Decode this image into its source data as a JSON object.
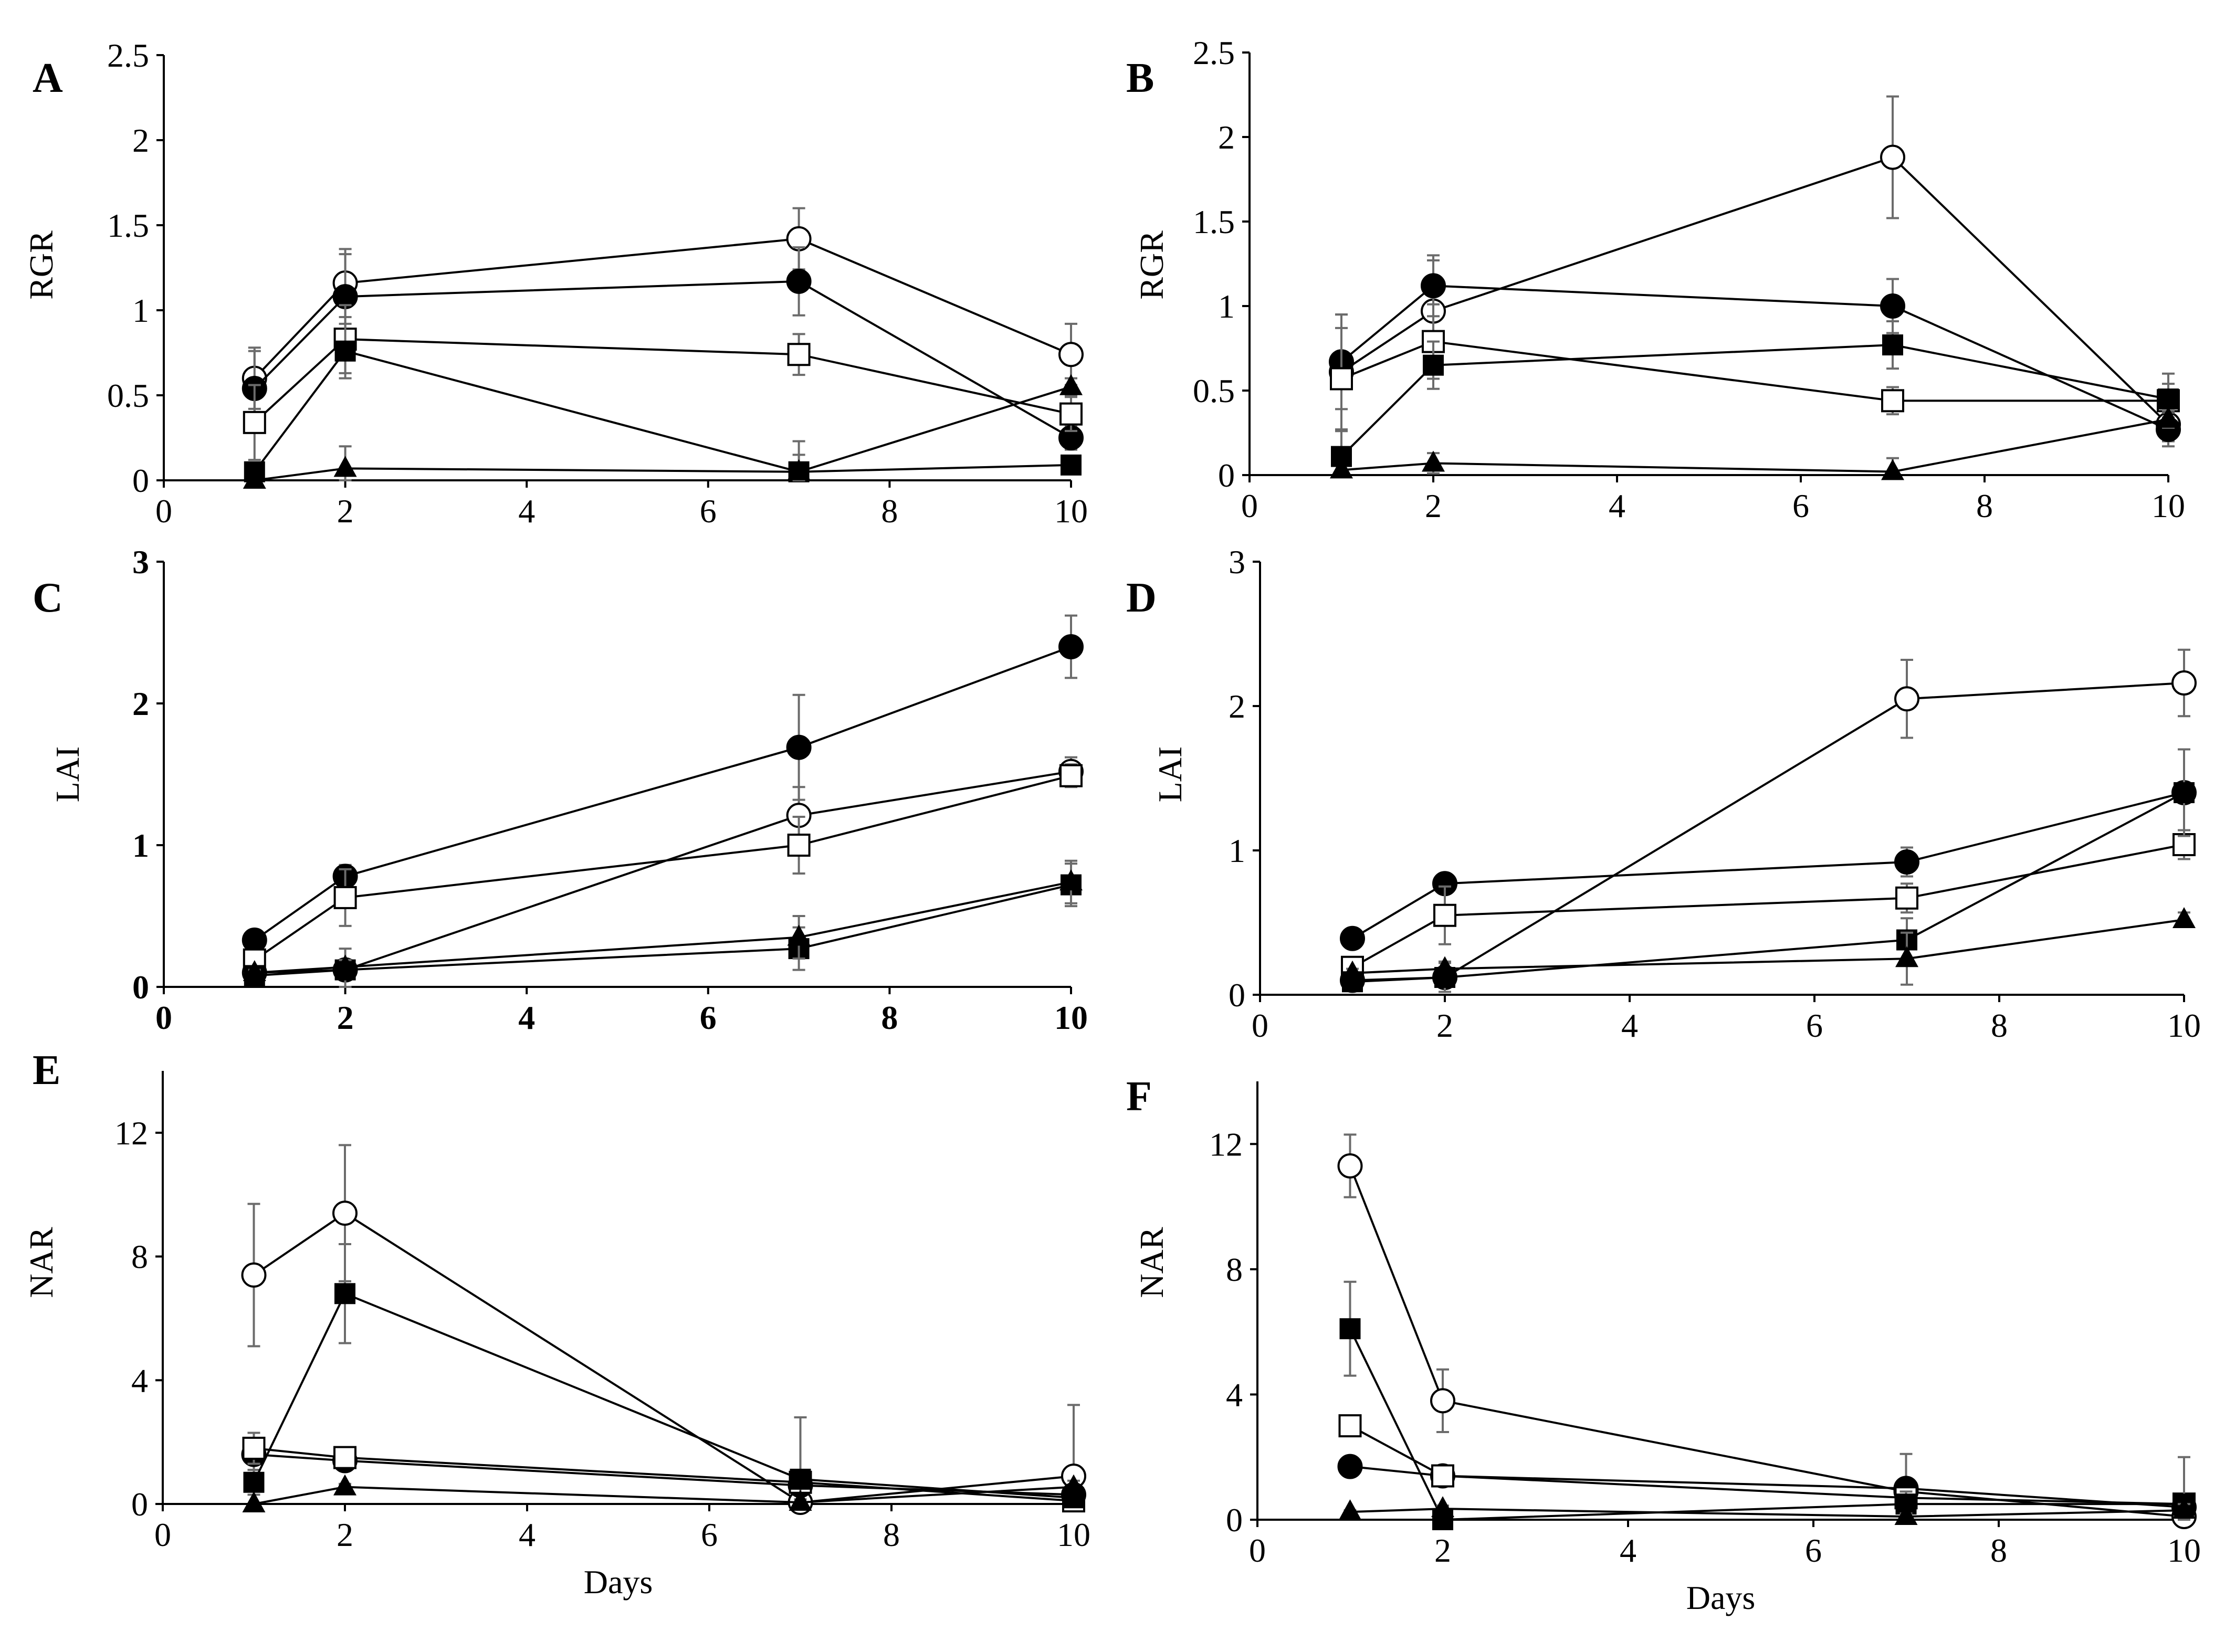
{
  "figure": {
    "xlabel_common": "Days"
  },
  "chart_data": [
    {
      "panel": "A",
      "type": "line",
      "ylabel": "RGR",
      "xlabel": "",
      "xlim": [
        0,
        10
      ],
      "ylim": [
        0,
        2.5
      ],
      "xticks": [
        0,
        2,
        4,
        6,
        8,
        10
      ],
      "yticks": [
        0,
        0.5,
        1,
        1.5,
        2,
        2.5
      ],
      "bold_ticks": false,
      "x": [
        1,
        2,
        7,
        10
      ],
      "series": [
        {
          "marker": "open-circle",
          "values": [
            0.6,
            1.16,
            1.42,
            0.74
          ],
          "errors": [
            0.18,
            0.2,
            0.18,
            0.18
          ]
        },
        {
          "marker": "filled-circle",
          "values": [
            0.54,
            1.08,
            1.17,
            0.25
          ],
          "errors": [
            0.22,
            0.25,
            0.2,
            0.07
          ]
        },
        {
          "marker": "open-square",
          "values": [
            0.34,
            0.83,
            0.74,
            0.39
          ],
          "errors": [
            0.22,
            0.2,
            0.12,
            0.1
          ]
        },
        {
          "marker": "filled-square",
          "values": [
            0.05,
            0.76,
            0.05,
            0.09
          ],
          "errors": [
            0.05,
            0.16,
            0.1,
            0.03
          ]
        },
        {
          "marker": "filled-triangle",
          "values": [
            0.0,
            0.07,
            0.05,
            0.55
          ],
          "errors": [
            0.0,
            0.13,
            0.18,
            0.05
          ]
        }
      ]
    },
    {
      "panel": "B",
      "type": "line",
      "ylabel": "RGR",
      "xlabel": "",
      "xlim": [
        0,
        10
      ],
      "ylim": [
        0,
        2.5
      ],
      "xticks": [
        0,
        2,
        4,
        6,
        8,
        10
      ],
      "yticks": [
        0,
        0.5,
        1,
        1.5,
        2,
        2.5
      ],
      "bold_ticks": false,
      "x": [
        1,
        2,
        7,
        10
      ],
      "series": [
        {
          "marker": "open-circle",
          "values": [
            0.61,
            0.97,
            1.88,
            0.3
          ],
          "errors": [
            0.34,
            0.3,
            0.36,
            0.1
          ]
        },
        {
          "marker": "filled-circle",
          "values": [
            0.67,
            1.12,
            1.0,
            0.27
          ],
          "errors": [
            0.28,
            0.18,
            0.16,
            0.1
          ]
        },
        {
          "marker": "open-square",
          "values": [
            0.57,
            0.79,
            0.44,
            0.44
          ],
          "errors": [
            0.3,
            0.22,
            0.08,
            0.1
          ]
        },
        {
          "marker": "filled-square",
          "values": [
            0.11,
            0.65,
            0.77,
            0.45
          ],
          "errors": [
            0.15,
            0.14,
            0.14,
            0.15
          ]
        },
        {
          "marker": "filled-triangle",
          "values": [
            0.03,
            0.07,
            0.02,
            0.33
          ],
          "errors": [
            0.0,
            0.06,
            0.08,
            0.05
          ]
        }
      ]
    },
    {
      "panel": "C",
      "type": "line",
      "ylabel": "LAI",
      "xlabel": "",
      "xlim": [
        0,
        10
      ],
      "ylim": [
        0,
        3
      ],
      "xticks": [
        0,
        2,
        4,
        6,
        8,
        10
      ],
      "yticks": [
        0,
        1,
        2,
        3
      ],
      "bold_ticks": true,
      "x": [
        1,
        2,
        7,
        10
      ],
      "series": [
        {
          "marker": "open-circle",
          "values": [
            0.1,
            0.12,
            1.21,
            1.52
          ],
          "errors": [
            0.03,
            0.03,
            0.2,
            0.1
          ]
        },
        {
          "marker": "filled-circle",
          "values": [
            0.33,
            0.78,
            1.69,
            2.4
          ],
          "errors": [
            0.03,
            0.08,
            0.37,
            0.22
          ]
        },
        {
          "marker": "open-square",
          "values": [
            0.19,
            0.63,
            1.0,
            1.49
          ],
          "errors": [
            0.04,
            0.2,
            0.2,
            0.08
          ]
        },
        {
          "marker": "filled-square",
          "values": [
            0.08,
            0.12,
            0.27,
            0.72
          ],
          "errors": [
            0.03,
            0.15,
            0.15,
            0.15
          ]
        },
        {
          "marker": "filled-triangle",
          "values": [
            0.1,
            0.14,
            0.35,
            0.74
          ],
          "errors": [
            0.02,
            0.05,
            0.15,
            0.15
          ]
        }
      ]
    },
    {
      "panel": "D",
      "type": "line",
      "ylabel": "LAI",
      "xlabel": "",
      "xlim": [
        0,
        10
      ],
      "ylim": [
        0,
        3
      ],
      "xticks": [
        0,
        2,
        4,
        6,
        8,
        10
      ],
      "yticks": [
        0,
        1,
        2,
        3
      ],
      "bold_ticks": false,
      "x": [
        1,
        2,
        7,
        10
      ],
      "series": [
        {
          "marker": "open-circle",
          "values": [
            0.1,
            0.12,
            2.05,
            2.16
          ],
          "errors": [
            0.03,
            0.03,
            0.27,
            0.23
          ]
        },
        {
          "marker": "filled-circle",
          "values": [
            0.39,
            0.77,
            0.92,
            1.4
          ],
          "errors": [
            0.04,
            0.04,
            0.1,
            0.3
          ]
        },
        {
          "marker": "open-square",
          "values": [
            0.19,
            0.55,
            0.67,
            1.04
          ],
          "errors": [
            0.05,
            0.2,
            0.1,
            0.1
          ]
        },
        {
          "marker": "filled-square",
          "values": [
            0.09,
            0.12,
            0.38,
            1.4
          ],
          "errors": [
            0.03,
            0.1,
            0.15,
            0.3
          ]
        },
        {
          "marker": "filled-triangle",
          "values": [
            0.15,
            0.18,
            0.25,
            0.52
          ],
          "errors": [
            0.03,
            0.05,
            0.18,
            0.05
          ]
        }
      ]
    },
    {
      "panel": "E",
      "type": "line",
      "ylabel": "NAR",
      "xlabel": "Days",
      "xlim": [
        0,
        10
      ],
      "ylim": [
        0,
        14
      ],
      "xticks": [
        0,
        2,
        4,
        6,
        8,
        10
      ],
      "yticks": [
        0,
        4,
        8,
        12
      ],
      "bold_ticks": false,
      "x": [
        1,
        2,
        7,
        10
      ],
      "series": [
        {
          "marker": "open-circle",
          "values": [
            7.4,
            9.4,
            0.05,
            0.9
          ],
          "errors": [
            2.3,
            2.2,
            0.1,
            2.3
          ]
        },
        {
          "marker": "filled-circle",
          "values": [
            1.6,
            1.4,
            0.6,
            0.3
          ],
          "errors": [
            0.5,
            0.2,
            0.2,
            0.2
          ]
        },
        {
          "marker": "open-square",
          "values": [
            1.8,
            1.5,
            0.7,
            0.1
          ],
          "errors": [
            0.5,
            0.2,
            0.2,
            0.2
          ]
        },
        {
          "marker": "filled-square",
          "values": [
            0.7,
            6.8,
            0.8,
            0.2
          ],
          "errors": [
            0.4,
            1.6,
            2.0,
            0.3
          ]
        },
        {
          "marker": "filled-triangle",
          "values": [
            0.0,
            0.55,
            0.05,
            0.55
          ],
          "errors": [
            0.0,
            0.1,
            0.1,
            0.2
          ]
        }
      ]
    },
    {
      "panel": "F",
      "type": "line",
      "ylabel": "NAR",
      "xlabel": "Days",
      "xlim": [
        0,
        10
      ],
      "ylim": [
        0,
        14
      ],
      "xticks": [
        0,
        2,
        4,
        6,
        8,
        10
      ],
      "yticks": [
        0,
        4,
        8,
        12
      ],
      "bold_ticks": false,
      "x": [
        1,
        2,
        7,
        10
      ],
      "series": [
        {
          "marker": "open-circle",
          "values": [
            11.3,
            3.8,
            0.9,
            0.1
          ],
          "errors": [
            1.0,
            1.0,
            1.2,
            0.3
          ]
        },
        {
          "marker": "filled-circle",
          "values": [
            1.7,
            1.4,
            1.0,
            0.4
          ],
          "errors": [
            0.1,
            0.1,
            0.2,
            0.2
          ]
        },
        {
          "marker": "open-square",
          "values": [
            3.0,
            1.4,
            0.7,
            0.5
          ],
          "errors": [
            0.1,
            0.1,
            0.2,
            0.2
          ]
        },
        {
          "marker": "filled-square",
          "values": [
            6.1,
            0.0,
            0.5,
            0.5
          ],
          "errors": [
            1.5,
            0.0,
            0.4,
            1.5
          ]
        },
        {
          "marker": "filled-triangle",
          "values": [
            0.25,
            0.35,
            0.1,
            0.3
          ],
          "errors": [
            0.05,
            0.1,
            0.1,
            0.2
          ]
        }
      ]
    }
  ]
}
